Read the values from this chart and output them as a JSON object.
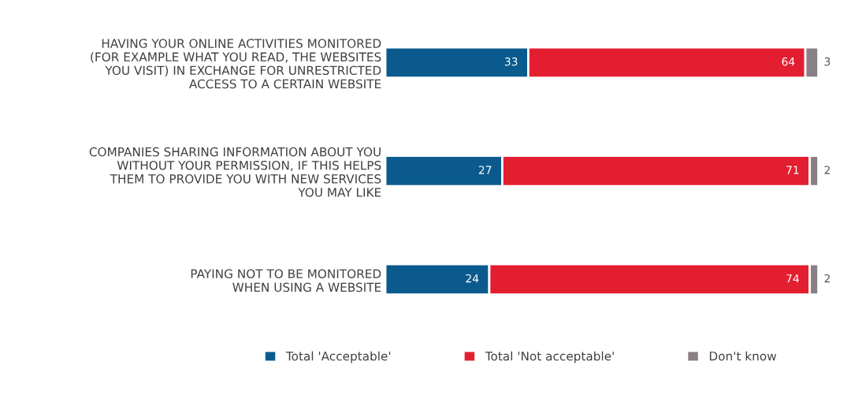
{
  "chart_data": {
    "type": "bar",
    "orientation": "horizontal",
    "stacked": true,
    "categories": [
      "HAVING YOUR ONLINE ACTIVITIES MONITORED\n(FOR EXAMPLE WHAT YOU READ, THE WEBSITES\nYOU VISIT) IN EXCHANGE FOR UNRESTRICTED\nACCESS TO A CERTAIN WEBSITE",
      "COMPANIES SHARING INFORMATION ABOUT YOU\nWITHOUT YOUR PERMISSION, IF THIS HELPS\nTHEM TO PROVIDE YOU WITH NEW SERVICES\nYOU MAY LIKE",
      "PAYING NOT TO BE MONITORED\nWHEN USING A WEBSITE"
    ],
    "series": [
      {
        "name": "Total 'Acceptable'",
        "color": "#0b5a8e",
        "values": [
          33,
          27,
          24
        ]
      },
      {
        "name": "Total 'Not acceptable'",
        "color": "#e31e30",
        "values": [
          64,
          71,
          74
        ]
      },
      {
        "name": "Don't know",
        "color": "#8a7f84",
        "values": [
          3,
          2,
          2
        ]
      }
    ],
    "data_labels": true,
    "legend": "bottom",
    "grid": false,
    "tick_labels": "y"
  }
}
